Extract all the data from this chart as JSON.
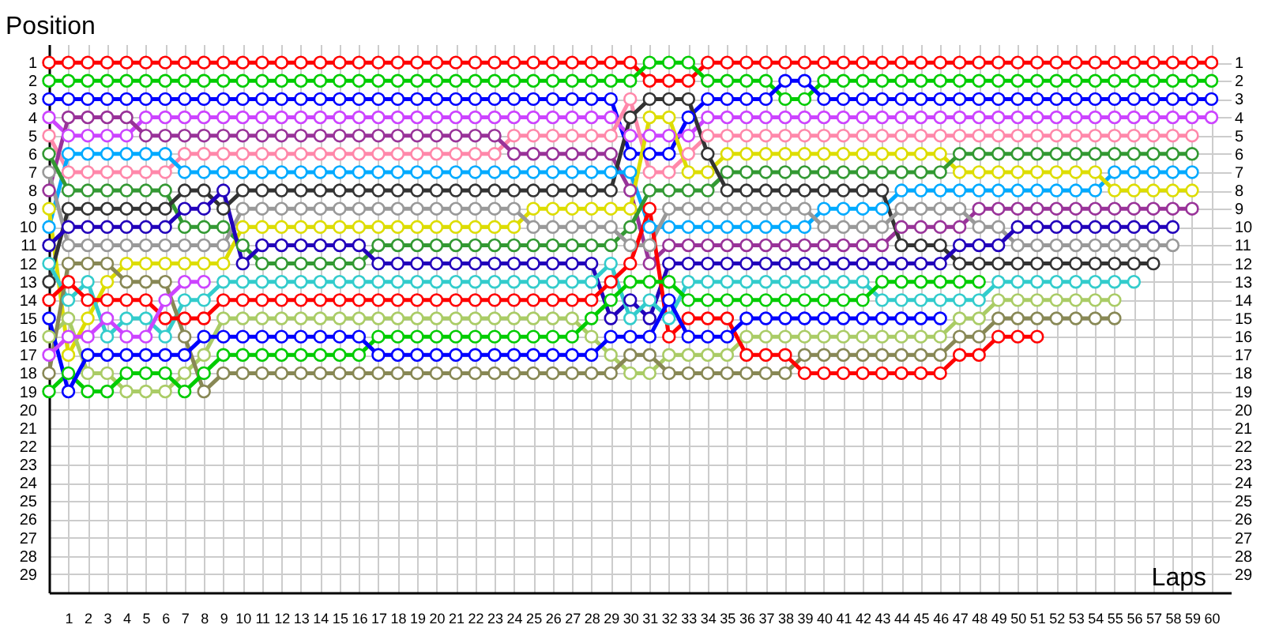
{
  "chart_data": {
    "type": "line",
    "xlabel": "Laps",
    "ylabel": "Position",
    "y2label": null,
    "marker": "circle",
    "grid": true,
    "legend": false,
    "x": [
      0,
      1,
      2,
      3,
      4,
      5,
      6,
      7,
      8,
      9,
      10,
      11,
      12,
      13,
      14,
      15,
      16,
      17,
      18,
      19,
      20,
      21,
      22,
      23,
      24,
      25,
      26,
      27,
      28,
      29,
      30,
      31,
      32,
      33,
      34,
      35,
      36,
      37,
      38,
      39,
      40,
      41,
      42,
      43,
      44,
      45,
      46,
      47,
      48,
      49,
      50,
      51,
      52,
      53,
      54,
      55,
      56,
      57,
      58,
      59,
      60
    ],
    "xlim": [
      0,
      61
    ],
    "xticks": [
      1,
      2,
      3,
      4,
      5,
      6,
      7,
      8,
      9,
      10,
      11,
      12,
      13,
      14,
      15,
      16,
      17,
      18,
      19,
      20,
      21,
      22,
      23,
      24,
      25,
      26,
      27,
      28,
      29,
      30,
      31,
      32,
      33,
      34,
      35,
      36,
      37,
      38,
      39,
      40,
      41,
      42,
      43,
      44,
      45,
      46,
      47,
      48,
      49,
      50,
      51,
      52,
      53,
      54,
      55,
      56,
      57,
      58,
      59,
      60
    ],
    "ylim": [
      30,
      0
    ],
    "yticks": [
      1,
      2,
      3,
      4,
      5,
      6,
      7,
      8,
      9,
      10,
      11,
      12,
      13,
      14,
      15,
      16,
      17,
      18,
      19,
      20,
      21,
      22,
      23,
      24,
      25,
      26,
      27,
      28,
      29
    ],
    "y2lim": [
      30,
      0
    ],
    "y2ticks": [
      1,
      2,
      3,
      4,
      5,
      6,
      7,
      8,
      9,
      10,
      11,
      12,
      13,
      14,
      15,
      16,
      17,
      18,
      19,
      20,
      21,
      22,
      23,
      24,
      25,
      26,
      27,
      28,
      29
    ],
    "series": [
      {
        "color": "#ff0000",
        "values": [
          1,
          1,
          1,
          1,
          1,
          1,
          1,
          1,
          1,
          1,
          1,
          1,
          1,
          1,
          1,
          1,
          1,
          1,
          1,
          1,
          1,
          1,
          1,
          1,
          1,
          1,
          1,
          1,
          1,
          1,
          1,
          2,
          2,
          2,
          1,
          1,
          1,
          1,
          1,
          1,
          1,
          1,
          1,
          1,
          1,
          1,
          1,
          1,
          1,
          1,
          1,
          1,
          1,
          1,
          1,
          1,
          1,
          1,
          1,
          1,
          1
        ]
      },
      {
        "color": "#00cc00",
        "values": [
          2,
          2,
          2,
          2,
          2,
          2,
          2,
          2,
          2,
          2,
          2,
          2,
          2,
          2,
          2,
          2,
          2,
          2,
          2,
          2,
          2,
          2,
          2,
          2,
          2,
          2,
          2,
          2,
          2,
          2,
          2,
          1,
          1,
          1,
          2,
          2,
          2,
          2,
          3,
          3,
          2,
          2,
          2,
          2,
          2,
          2,
          2,
          2,
          2,
          2,
          2,
          2,
          2,
          2,
          2,
          2,
          2,
          2,
          2,
          2,
          2
        ]
      },
      {
        "color": "#0000ff",
        "values": [
          3,
          3,
          3,
          3,
          3,
          3,
          3,
          3,
          3,
          3,
          3,
          3,
          3,
          3,
          3,
          3,
          3,
          3,
          3,
          3,
          3,
          3,
          3,
          3,
          3,
          3,
          3,
          3,
          3,
          3,
          6,
          6,
          6,
          4,
          3,
          3,
          3,
          3,
          2,
          2,
          3,
          3,
          3,
          3,
          3,
          3,
          3,
          3,
          3,
          3,
          3,
          3,
          3,
          3,
          3,
          3,
          3,
          3,
          3,
          3,
          3
        ]
      },
      {
        "color": "#cc44ff",
        "values": [
          4,
          5,
          5,
          5,
          5,
          4,
          4,
          4,
          4,
          4,
          4,
          4,
          4,
          4,
          4,
          4,
          4,
          4,
          4,
          4,
          4,
          4,
          4,
          4,
          4,
          4,
          4,
          4,
          4,
          4,
          5,
          5,
          5,
          5,
          4,
          4,
          4,
          4,
          4,
          4,
          4,
          4,
          4,
          4,
          4,
          4,
          4,
          4,
          4,
          4,
          4,
          4,
          4,
          4,
          4,
          4,
          4,
          4,
          4,
          4,
          4
        ]
      },
      {
        "color": "#ff88aa",
        "values": [
          5,
          7,
          7,
          7,
          7,
          7,
          7,
          6,
          6,
          6,
          6,
          6,
          6,
          6,
          6,
          6,
          6,
          6,
          6,
          6,
          6,
          6,
          6,
          6,
          5,
          5,
          5,
          5,
          5,
          5,
          3,
          7,
          7,
          6,
          5,
          5,
          5,
          5,
          5,
          5,
          5,
          5,
          5,
          5,
          5,
          5,
          5,
          5,
          5,
          5,
          5,
          5,
          5,
          5,
          5,
          5,
          5,
          5,
          5,
          5,
          null
        ]
      },
      {
        "color": "#993399",
        "values": [
          8,
          4,
          4,
          4,
          4,
          5,
          5,
          5,
          5,
          5,
          5,
          5,
          5,
          5,
          5,
          5,
          5,
          5,
          5,
          5,
          5,
          5,
          5,
          5,
          6,
          6,
          6,
          6,
          6,
          6,
          8,
          12,
          11,
          11,
          11,
          11,
          11,
          11,
          11,
          11,
          11,
          11,
          11,
          11,
          10,
          10,
          10,
          10,
          9,
          9,
          9,
          9,
          9,
          9,
          9,
          9,
          9,
          9,
          9,
          9,
          null
        ]
      },
      {
        "color": "#00aaff",
        "values": [
          10,
          6,
          6,
          6,
          6,
          6,
          6,
          7,
          7,
          7,
          7,
          7,
          7,
          7,
          7,
          7,
          7,
          7,
          7,
          7,
          7,
          7,
          7,
          7,
          7,
          7,
          7,
          7,
          7,
          7,
          7,
          10,
          10,
          10,
          10,
          10,
          10,
          10,
          10,
          10,
          9,
          9,
          9,
          9,
          8,
          8,
          8,
          8,
          8,
          8,
          8,
          8,
          8,
          8,
          8,
          7,
          7,
          7,
          7,
          7,
          null
        ]
      },
      {
        "color": "#dddd00",
        "values": [
          9,
          17,
          15,
          13,
          12,
          12,
          12,
          12,
          12,
          12,
          10,
          10,
          10,
          10,
          10,
          10,
          10,
          10,
          10,
          10,
          10,
          10,
          10,
          10,
          10,
          9,
          9,
          9,
          9,
          9,
          9,
          4,
          4,
          7,
          7,
          6,
          6,
          6,
          6,
          6,
          6,
          6,
          6,
          6,
          6,
          6,
          6,
          7,
          7,
          7,
          7,
          7,
          7,
          7,
          7,
          8,
          8,
          8,
          8,
          8,
          null
        ]
      },
      {
        "color": "#339933",
        "values": [
          6,
          8,
          8,
          8,
          8,
          8,
          8,
          10,
          10,
          10,
          11,
          12,
          12,
          12,
          12,
          12,
          12,
          11,
          11,
          11,
          11,
          11,
          11,
          11,
          11,
          11,
          11,
          11,
          11,
          11,
          10,
          8,
          8,
          8,
          8,
          7,
          7,
          7,
          7,
          7,
          7,
          7,
          7,
          7,
          7,
          7,
          7,
          6,
          6,
          6,
          6,
          6,
          6,
          6,
          6,
          6,
          6,
          6,
          6,
          6,
          null
        ]
      },
      {
        "color": "#333333",
        "values": [
          13,
          9,
          9,
          9,
          9,
          9,
          9,
          8,
          8,
          9,
          8,
          8,
          8,
          8,
          8,
          8,
          8,
          8,
          8,
          8,
          8,
          8,
          8,
          8,
          8,
          8,
          8,
          8,
          8,
          8,
          4,
          3,
          3,
          3,
          6,
          8,
          8,
          8,
          8,
          8,
          8,
          8,
          8,
          8,
          11,
          11,
          11,
          12,
          12,
          12,
          12,
          12,
          12,
          12,
          12,
          12,
          12,
          12,
          null,
          null,
          null
        ]
      },
      {
        "color": "#999999",
        "values": [
          7,
          11,
          11,
          11,
          11,
          11,
          11,
          11,
          11,
          11,
          9,
          9,
          9,
          9,
          9,
          9,
          9,
          9,
          9,
          9,
          9,
          9,
          9,
          9,
          9,
          10,
          10,
          10,
          10,
          10,
          11,
          11,
          9,
          9,
          9,
          9,
          9,
          9,
          9,
          9,
          10,
          10,
          10,
          10,
          9,
          9,
          9,
          9,
          10,
          10,
          11,
          11,
          11,
          11,
          11,
          11,
          11,
          11,
          11,
          null,
          null
        ]
      },
      {
        "color": "#2200bb",
        "values": [
          11,
          10,
          10,
          10,
          10,
          10,
          10,
          9,
          9,
          8,
          12,
          11,
          11,
          11,
          11,
          11,
          11,
          12,
          12,
          12,
          12,
          12,
          12,
          12,
          12,
          12,
          12,
          12,
          12,
          15,
          14,
          15,
          12,
          12,
          12,
          12,
          12,
          12,
          12,
          12,
          12,
          12,
          12,
          12,
          12,
          12,
          12,
          11,
          11,
          11,
          10,
          10,
          10,
          10,
          10,
          10,
          10,
          10,
          10,
          null,
          null
        ]
      },
      {
        "color": "#33cccc",
        "values": [
          12,
          14,
          13,
          16,
          15,
          15,
          16,
          14,
          14,
          13,
          13,
          13,
          13,
          13,
          13,
          13,
          13,
          13,
          13,
          13,
          13,
          13,
          13,
          13,
          13,
          13,
          13,
          13,
          13,
          12,
          15,
          14,
          15,
          13,
          13,
          13,
          13,
          13,
          13,
          13,
          13,
          13,
          13,
          14,
          14,
          14,
          14,
          14,
          14,
          13,
          13,
          13,
          13,
          13,
          13,
          13,
          13,
          null,
          null,
          null,
          null
        ]
      },
      {
        "color": "#aacc66",
        "values": [
          16,
          15,
          18,
          18,
          19,
          19,
          19,
          18,
          17,
          15,
          15,
          15,
          15,
          15,
          15,
          15,
          15,
          15,
          15,
          15,
          15,
          15,
          15,
          15,
          15,
          15,
          15,
          15,
          16,
          17,
          18,
          18,
          17,
          17,
          17,
          17,
          16,
          16,
          16,
          16,
          16,
          16,
          16,
          16,
          16,
          16,
          16,
          15,
          15,
          14,
          14,
          14,
          14,
          14,
          14,
          14,
          null,
          null,
          null,
          null,
          null
        ]
      },
      {
        "color": "#888855",
        "values": [
          18,
          12,
          12,
          12,
          13,
          13,
          13,
          16,
          19,
          18,
          18,
          18,
          18,
          18,
          18,
          18,
          18,
          18,
          18,
          18,
          18,
          18,
          18,
          18,
          18,
          18,
          18,
          18,
          18,
          18,
          17,
          17,
          18,
          18,
          18,
          18,
          18,
          18,
          18,
          17,
          17,
          17,
          17,
          17,
          17,
          17,
          17,
          16,
          16,
          15,
          15,
          15,
          15,
          15,
          15,
          15,
          null,
          null,
          null,
          null,
          null
        ]
      },
      {
        "color": "#ff0000",
        "values": [
          14,
          13,
          14,
          14,
          14,
          14,
          15,
          15,
          15,
          14,
          14,
          14,
          14,
          14,
          14,
          14,
          14,
          14,
          14,
          14,
          14,
          14,
          14,
          14,
          14,
          14,
          14,
          14,
          14,
          13,
          12,
          9,
          16,
          15,
          15,
          15,
          17,
          17,
          17,
          18,
          18,
          18,
          18,
          18,
          18,
          18,
          18,
          17,
          17,
          16,
          16,
          16,
          null,
          null,
          null,
          null,
          null,
          null,
          null,
          null,
          null
        ]
      },
      {
        "color": "#00cc00",
        "values": [
          19,
          18,
          19,
          19,
          18,
          18,
          18,
          19,
          18,
          17,
          17,
          17,
          17,
          17,
          17,
          17,
          17,
          16,
          16,
          16,
          16,
          16,
          16,
          16,
          16,
          16,
          16,
          16,
          15,
          14,
          13,
          13,
          13,
          14,
          14,
          14,
          14,
          14,
          14,
          14,
          14,
          14,
          14,
          13,
          13,
          13,
          13,
          13,
          13,
          null,
          null,
          null,
          null,
          null,
          null,
          null,
          null,
          null,
          null,
          null,
          null
        ]
      },
      {
        "color": "#0000ff",
        "values": [
          15,
          19,
          17,
          17,
          17,
          17,
          17,
          17,
          16,
          16,
          16,
          16,
          16,
          16,
          16,
          16,
          16,
          17,
          17,
          17,
          17,
          17,
          17,
          17,
          17,
          17,
          17,
          17,
          17,
          16,
          16,
          16,
          14,
          16,
          16,
          16,
          15,
          15,
          15,
          15,
          15,
          15,
          15,
          15,
          15,
          15,
          15,
          null,
          null,
          null,
          null,
          null,
          null,
          null,
          null,
          null,
          null,
          null,
          null,
          null,
          null
        ]
      },
      {
        "color": "#cc44ff",
        "values": [
          17,
          16,
          16,
          15,
          16,
          16,
          14,
          13,
          13,
          null,
          null,
          null,
          null,
          null,
          null,
          null,
          null,
          null,
          null,
          null,
          null,
          null,
          null,
          null,
          null,
          null,
          null,
          null,
          null,
          null,
          null,
          null,
          null,
          null,
          null,
          null,
          null,
          null,
          null,
          null,
          null,
          null,
          null,
          null,
          null,
          null,
          null,
          null,
          null,
          null,
          null,
          null,
          null,
          null,
          null,
          null,
          null,
          null,
          null,
          null,
          null
        ]
      }
    ]
  }
}
